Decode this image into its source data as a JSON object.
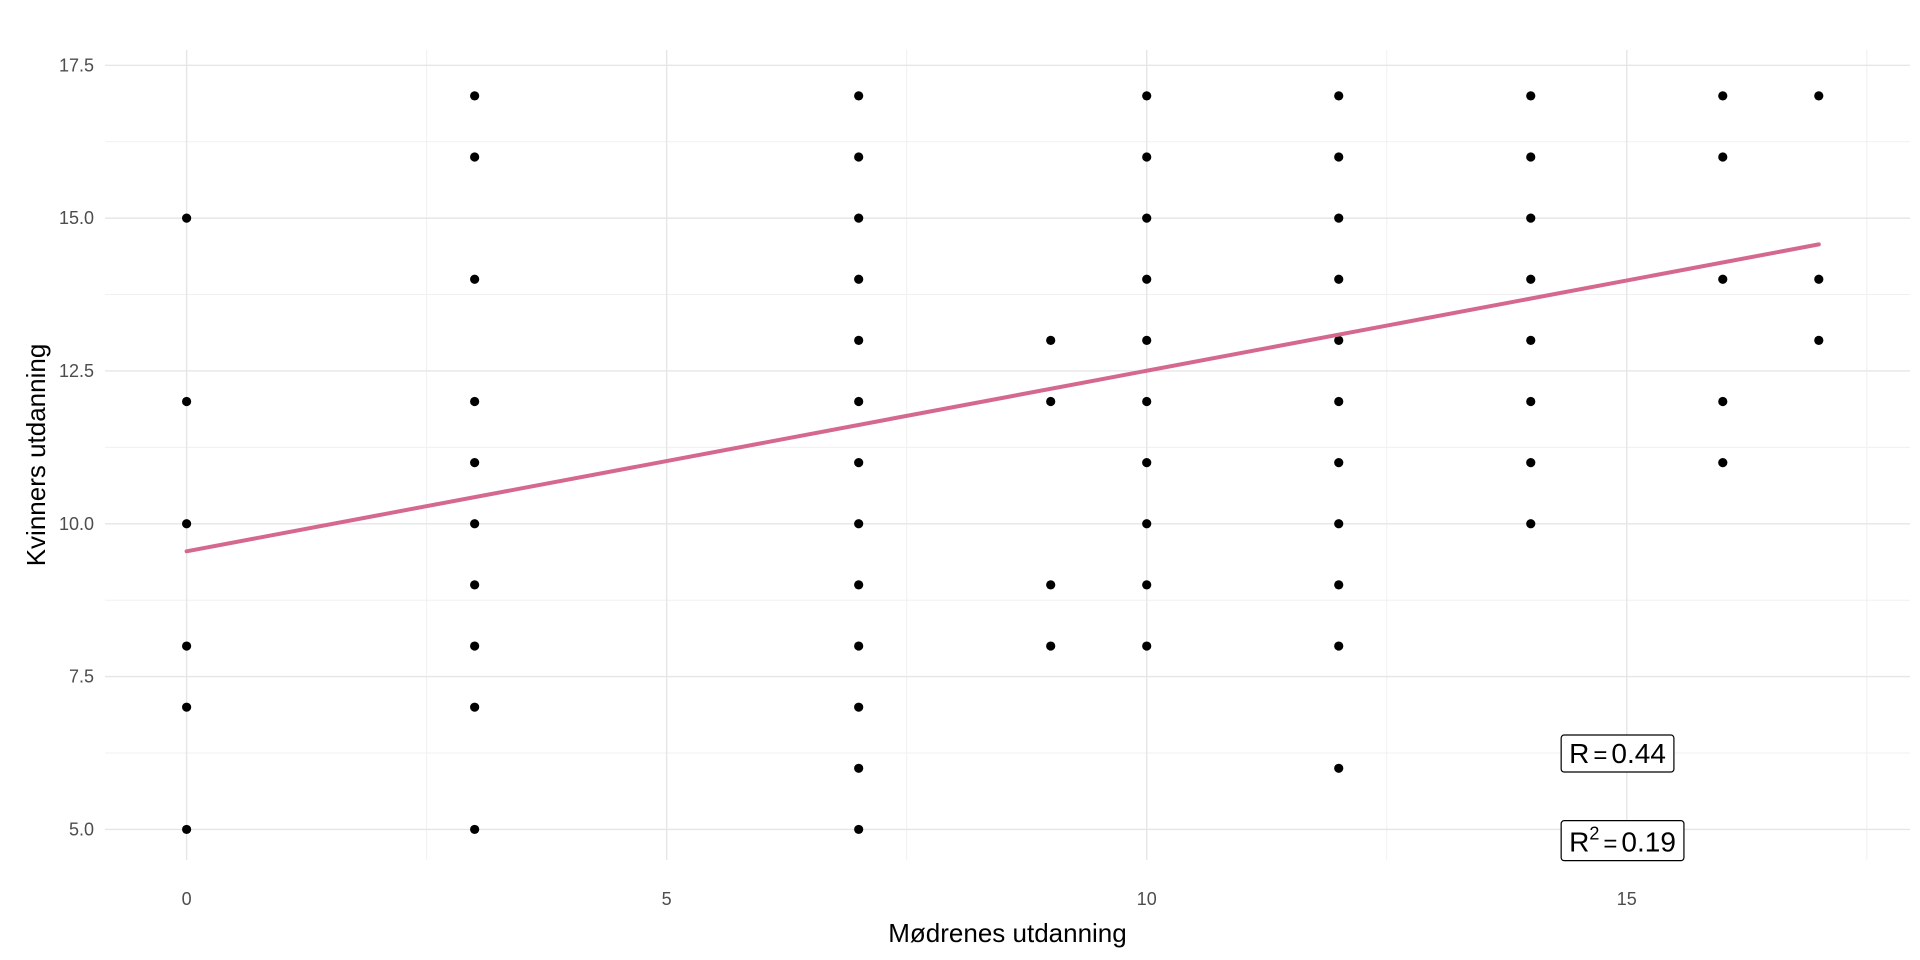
{
  "chart_data": {
    "type": "scatter",
    "title": "",
    "xlabel": "Mødrenes utdanning",
    "ylabel": "Kvinners utdanning",
    "xlim": [
      -0.85,
      17.95
    ],
    "ylim": [
      4.5,
      17.75
    ],
    "x_ticks": [
      0,
      5,
      10,
      15
    ],
    "x_tick_labels": [
      "0",
      "5",
      "10",
      "15"
    ],
    "y_ticks": [
      5,
      7.5,
      10,
      12.5,
      15,
      17.5
    ],
    "y_tick_labels": [
      "5.0",
      "7.5",
      "10.0",
      "12.5",
      "15.0",
      "17.5"
    ],
    "grid": true,
    "points": [
      [
        0,
        5
      ],
      [
        0,
        7
      ],
      [
        0,
        8
      ],
      [
        0,
        10
      ],
      [
        0,
        12
      ],
      [
        0,
        15
      ],
      [
        3,
        5
      ],
      [
        3,
        7
      ],
      [
        3,
        8
      ],
      [
        3,
        9
      ],
      [
        3,
        10
      ],
      [
        3,
        11
      ],
      [
        3,
        12
      ],
      [
        3,
        14
      ],
      [
        3,
        16
      ],
      [
        3,
        17
      ],
      [
        7,
        5
      ],
      [
        7,
        6
      ],
      [
        7,
        7
      ],
      [
        7,
        8
      ],
      [
        7,
        9
      ],
      [
        7,
        10
      ],
      [
        7,
        11
      ],
      [
        7,
        12
      ],
      [
        7,
        13
      ],
      [
        7,
        14
      ],
      [
        7,
        15
      ],
      [
        7,
        16
      ],
      [
        7,
        17
      ],
      [
        9,
        8
      ],
      [
        9,
        9
      ],
      [
        9,
        12
      ],
      [
        9,
        13
      ],
      [
        10,
        8
      ],
      [
        10,
        9
      ],
      [
        10,
        10
      ],
      [
        10,
        11
      ],
      [
        10,
        12
      ],
      [
        10,
        13
      ],
      [
        10,
        14
      ],
      [
        10,
        15
      ],
      [
        10,
        16
      ],
      [
        10,
        17
      ],
      [
        12,
        6
      ],
      [
        12,
        8
      ],
      [
        12,
        9
      ],
      [
        12,
        10
      ],
      [
        12,
        11
      ],
      [
        12,
        12
      ],
      [
        12,
        13
      ],
      [
        12,
        14
      ],
      [
        12,
        15
      ],
      [
        12,
        16
      ],
      [
        12,
        17
      ],
      [
        14,
        10
      ],
      [
        14,
        11
      ],
      [
        14,
        12
      ],
      [
        14,
        13
      ],
      [
        14,
        14
      ],
      [
        14,
        15
      ],
      [
        14,
        16
      ],
      [
        14,
        17
      ],
      [
        16,
        11
      ],
      [
        16,
        12
      ],
      [
        16,
        14
      ],
      [
        16,
        16
      ],
      [
        16,
        17
      ],
      [
        17,
        13
      ],
      [
        17,
        14
      ],
      [
        17,
        17
      ]
    ],
    "point_color": "#000000",
    "regression_line": {
      "x": [
        0,
        17
      ],
      "y": [
        9.55,
        14.57
      ],
      "color": "#d4688f"
    },
    "annotations": {
      "r": {
        "label": "R",
        "value": "0.44",
        "x": 14.4,
        "y": 6.25
      },
      "r2": {
        "label": "R",
        "superscript": "2",
        "value": "0.19",
        "x": 14.4,
        "y": 4.8
      }
    }
  }
}
